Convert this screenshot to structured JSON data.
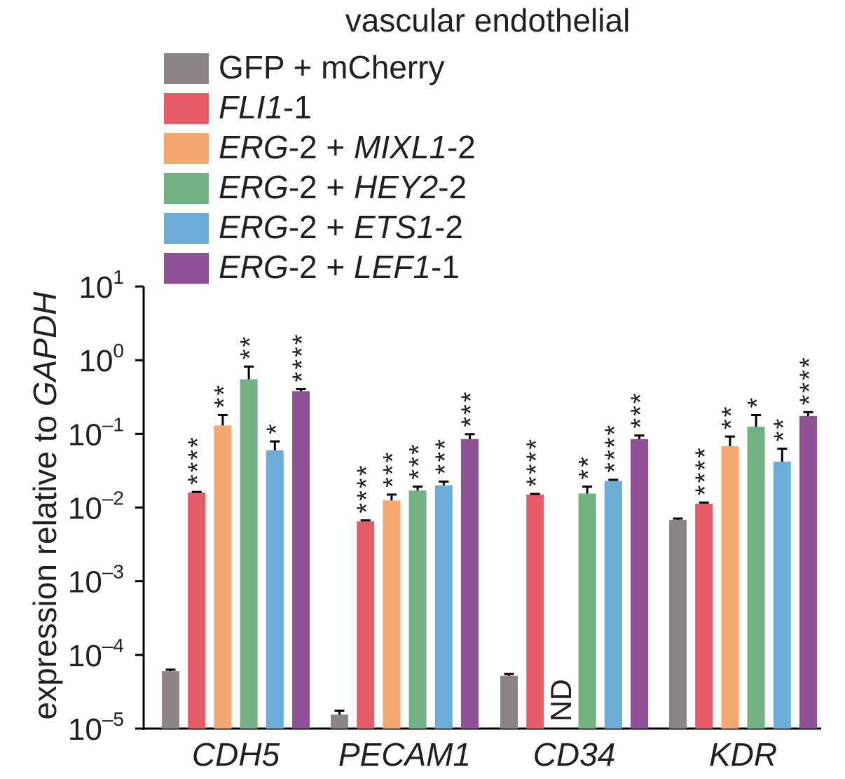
{
  "chart_data": {
    "type": "bar",
    "title": "vascular endothelial",
    "ylabel_prefix": "expression relative to ",
    "ylabel_gene": "GAPDH",
    "yscale": "log",
    "ylim": [
      1e-05,
      10
    ],
    "yticks": [
      {
        "value": 10,
        "base": "10",
        "exp": "1"
      },
      {
        "value": 1,
        "base": "10",
        "exp": "0"
      },
      {
        "value": 0.1,
        "base": "10",
        "exp": "–1"
      },
      {
        "value": 0.01,
        "base": "10",
        "exp": "–2"
      },
      {
        "value": 0.001,
        "base": "10",
        "exp": "–3"
      },
      {
        "value": 0.0001,
        "base": "10",
        "exp": "–4"
      },
      {
        "value": 1e-05,
        "base": "10",
        "exp": "–5"
      }
    ],
    "categories": [
      "CDH5",
      "PECAM1",
      "CD34",
      "KDR"
    ],
    "series": [
      {
        "name_parts": [
          [
            "GFP + mCherry",
            false
          ]
        ],
        "color": "#8a8584",
        "values": [
          6e-05,
          1.55e-05,
          5.2e-05,
          0.0068
        ],
        "errors": [
          6.3e-05,
          1.75e-05,
          5.5e-05,
          0.0071
        ],
        "stars": [
          "",
          "",
          "",
          ""
        ],
        "nd": [
          false,
          false,
          false,
          false
        ]
      },
      {
        "name_parts": [
          [
            "FLI1",
            true
          ],
          [
            "-1",
            false
          ]
        ],
        "color": "#e55b67",
        "values": [
          0.016,
          0.0065,
          0.015,
          0.0113
        ],
        "errors": [
          0.0163,
          0.0067,
          0.0153,
          0.0117
        ],
        "stars": [
          "****",
          "****",
          "****",
          "****"
        ],
        "nd": [
          false,
          false,
          false,
          false
        ]
      },
      {
        "name_parts": [
          [
            "ERG",
            true
          ],
          [
            "-2 + ",
            false
          ],
          [
            "MIXL1",
            true
          ],
          [
            "-2",
            false
          ]
        ],
        "color": "#f4a870",
        "values": [
          0.13,
          0.0125,
          null,
          0.068
        ],
        "errors": [
          0.18,
          0.015,
          null,
          0.092
        ],
        "stars": [
          "**",
          "***",
          "",
          "**"
        ],
        "nd": [
          false,
          false,
          true,
          false
        ]
      },
      {
        "name_parts": [
          [
            "ERG",
            true
          ],
          [
            "-2 + ",
            false
          ],
          [
            "HEY2",
            true
          ],
          [
            "-2",
            false
          ]
        ],
        "color": "#72b182",
        "values": [
          0.55,
          0.017,
          0.0155,
          0.125
        ],
        "errors": [
          0.82,
          0.0192,
          0.0192,
          0.18
        ],
        "stars": [
          "**",
          "***",
          "**",
          "*"
        ],
        "nd": [
          false,
          false,
          false,
          false
        ]
      },
      {
        "name_parts": [
          [
            "ERG",
            true
          ],
          [
            "-2 + ",
            false
          ],
          [
            "ETS1",
            true
          ],
          [
            "-2",
            false
          ]
        ],
        "color": "#6badd7",
        "values": [
          0.06,
          0.02,
          0.023,
          0.042
        ],
        "errors": [
          0.079,
          0.0225,
          0.0238,
          0.063
        ],
        "stars": [
          "*",
          "***",
          "****",
          "**"
        ],
        "nd": [
          false,
          false,
          false,
          false
        ]
      },
      {
        "name_parts": [
          [
            "ERG",
            true
          ],
          [
            "-2 + ",
            false
          ],
          [
            "LEF1",
            true
          ],
          [
            "-1",
            false
          ]
        ],
        "color": "#8e5196",
        "values": [
          0.38,
          0.085,
          0.085,
          0.175
        ],
        "errors": [
          0.405,
          0.099,
          0.095,
          0.197
        ],
        "stars": [
          "****",
          "***",
          "***",
          "****"
        ],
        "nd": [
          false,
          false,
          false,
          false
        ]
      }
    ],
    "nd_label": "ND",
    "legend_position": "top-left"
  }
}
